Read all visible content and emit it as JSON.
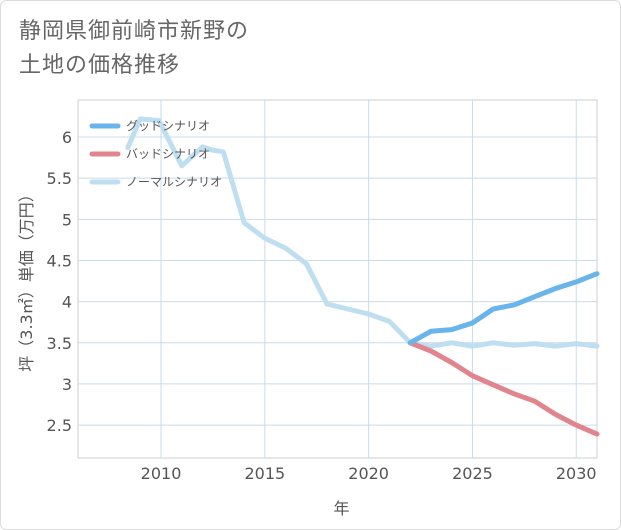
{
  "page": {
    "title_line1": "静岡県御前崎市新野の",
    "title_line2": "土地の価格推移"
  },
  "chart_data": {
    "type": "line",
    "xlabel": "年",
    "ylabel": "坪（3.3㎡）単価（万円）",
    "xlim": [
      2006,
      2031
    ],
    "ylim": [
      2.1,
      6.45
    ],
    "x_ticks": [
      2010,
      2015,
      2020,
      2025,
      2030
    ],
    "y_ticks": [
      2.5,
      3,
      3.5,
      4,
      4.5,
      5,
      5.5,
      6
    ],
    "grid": true,
    "legend_position": "top-left",
    "series": [
      {
        "name": "グッドシナリオ",
        "color": "#6ab4ec",
        "points": [
          [
            2022,
            3.5
          ],
          [
            2023,
            3.64
          ],
          [
            2024,
            3.66
          ],
          [
            2025,
            3.74
          ],
          [
            2026,
            3.91
          ],
          [
            2027,
            3.96
          ],
          [
            2028,
            4.06
          ],
          [
            2029,
            4.16
          ],
          [
            2030,
            4.24
          ],
          [
            2031,
            4.34
          ]
        ]
      },
      {
        "name": "バッドシナリオ",
        "color": "#e0848e",
        "points": [
          [
            2022,
            3.5
          ],
          [
            2023,
            3.4
          ],
          [
            2024,
            3.26
          ],
          [
            2025,
            3.1
          ],
          [
            2026,
            2.99
          ],
          [
            2027,
            2.88
          ],
          [
            2028,
            2.79
          ],
          [
            2029,
            2.63
          ],
          [
            2030,
            2.5
          ],
          [
            2031,
            2.39
          ]
        ]
      },
      {
        "name": "ノーマルシナリオ",
        "color": "#bfdff0",
        "points": [
          [
            2008.4,
            5.87
          ],
          [
            2009,
            6.22
          ],
          [
            2009.9,
            6.2
          ],
          [
            2011,
            5.65
          ],
          [
            2012,
            5.88
          ],
          [
            2012.5,
            5.84
          ],
          [
            2013,
            5.82
          ],
          [
            2014,
            4.96
          ],
          [
            2015,
            4.77
          ],
          [
            2016,
            4.65
          ],
          [
            2017,
            4.46
          ],
          [
            2018,
            3.97
          ],
          [
            2019,
            3.91
          ],
          [
            2020,
            3.85
          ],
          [
            2021,
            3.76
          ],
          [
            2022,
            3.5
          ],
          [
            2023,
            3.46
          ],
          [
            2024,
            3.5
          ],
          [
            2025,
            3.46
          ],
          [
            2026,
            3.5
          ],
          [
            2027,
            3.47
          ],
          [
            2028,
            3.49
          ],
          [
            2029,
            3.46
          ],
          [
            2030,
            3.49
          ],
          [
            2031,
            3.46
          ]
        ]
      }
    ]
  }
}
